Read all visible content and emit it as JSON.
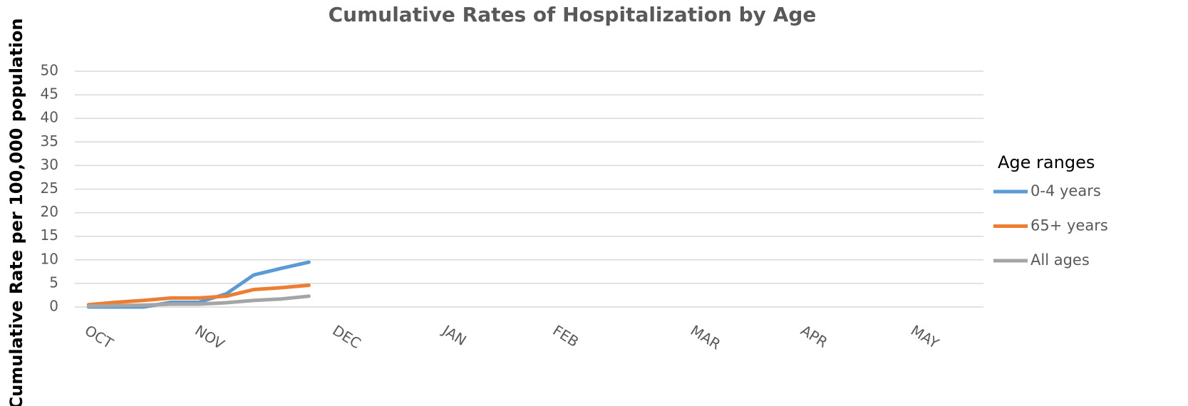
{
  "chart_data": {
    "type": "line",
    "title": "Cumulative Rates of Hospitalization by Age",
    "y_label": "Cumulative Rate per 100,000 population",
    "legend_title": "Age ranges",
    "legend": "right",
    "grid": true,
    "categories": [
      "OCT",
      null,
      null,
      null,
      "NOV",
      null,
      null,
      null,
      null,
      "DEC",
      null,
      null,
      null,
      "JAN",
      null,
      null,
      null,
      "FEB",
      null,
      null,
      null,
      null,
      "MAR",
      null,
      null,
      null,
      "APR",
      null,
      null,
      null,
      "MAY",
      null,
      null
    ],
    "ylim": [
      0,
      50
    ],
    "yticks": [
      0,
      5,
      10,
      15,
      20,
      25,
      30,
      35,
      40,
      45,
      50
    ],
    "series": [
      {
        "name": "0-4 years",
        "color": "#5b9bd5",
        "values": [
          0,
          0,
          0,
          1,
          1,
          2.8,
          6.8,
          8.2,
          9.5,
          null,
          null,
          null,
          null,
          null,
          null,
          null,
          null,
          null,
          null,
          null,
          null,
          null,
          null,
          null,
          null,
          null,
          null,
          null,
          null,
          null,
          null,
          null,
          null
        ]
      },
      {
        "name": "65+ years",
        "color": "#ed7d31",
        "values": [
          0.5,
          1,
          1.4,
          1.9,
          1.9,
          2.3,
          3.7,
          4.1,
          4.6,
          null,
          null,
          null,
          null,
          null,
          null,
          null,
          null,
          null,
          null,
          null,
          null,
          null,
          null,
          null,
          null,
          null,
          null,
          null,
          null,
          null,
          null,
          null,
          null
        ]
      },
      {
        "name": "All ages",
        "color": "#a5a5a5",
        "values": [
          0.2,
          0.3,
          0.4,
          0.6,
          0.6,
          0.9,
          1.4,
          1.7,
          2.3,
          null,
          null,
          null,
          null,
          null,
          null,
          null,
          null,
          null,
          null,
          null,
          null,
          null,
          null,
          null,
          null,
          null,
          null,
          null,
          null,
          null,
          null,
          null,
          null
        ]
      }
    ]
  }
}
